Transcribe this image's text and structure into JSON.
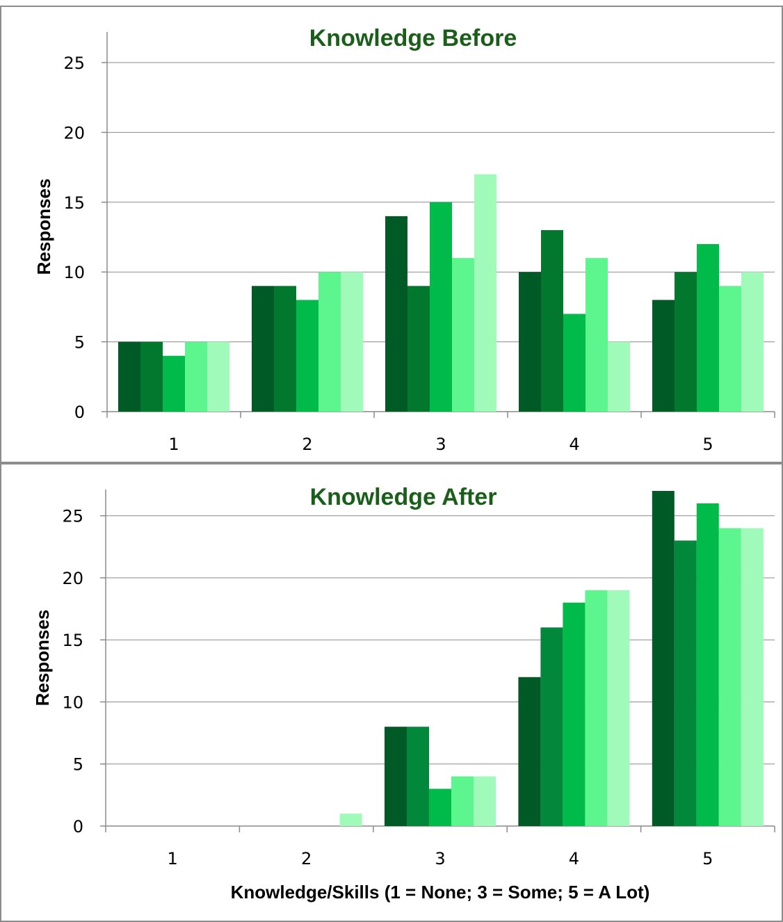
{
  "chart_data": [
    {
      "type": "bar",
      "title": "Knowledge Before",
      "ylabel": "Responses",
      "xlabel": "",
      "categories": [
        "1",
        "2",
        "3",
        "4",
        "5"
      ],
      "ylim": [
        0,
        25
      ],
      "yticks": [
        "0",
        "5",
        "10",
        "15",
        "20",
        "25"
      ],
      "grid": true,
      "series": [
        {
          "color": "#005a25",
          "values": [
            5,
            9,
            14,
            10,
            8
          ]
        },
        {
          "color": "#02782f",
          "values": [
            5,
            9,
            9,
            13,
            10
          ]
        },
        {
          "color": "#00bb4a",
          "values": [
            4,
            8,
            15,
            7,
            12
          ]
        },
        {
          "color": "#5cf58e",
          "values": [
            5,
            10,
            11,
            11,
            9
          ]
        },
        {
          "color": "#a0fbbb",
          "values": [
            5,
            10,
            17,
            5,
            10
          ]
        }
      ]
    },
    {
      "type": "bar",
      "title": "Knowledge After",
      "ylabel": "Responses",
      "xlabel": "Knowledge/Skills (1 = None; 3 = Some; 5 = A Lot)",
      "categories": [
        "1",
        "2",
        "3",
        "4",
        "5"
      ],
      "ylim": [
        0,
        27
      ],
      "yticks": [
        "0",
        "5",
        "10",
        "15",
        "20",
        "25"
      ],
      "grid": true,
      "series": [
        {
          "color": "#005a25",
          "values": [
            0,
            0,
            8,
            12,
            27
          ]
        },
        {
          "color": "#02883a",
          "values": [
            0,
            0,
            8,
            16,
            23
          ]
        },
        {
          "color": "#00bb4a",
          "values": [
            0,
            0,
            3,
            18,
            26
          ]
        },
        {
          "color": "#5cf58e",
          "values": [
            0,
            0,
            4,
            19,
            24
          ]
        },
        {
          "color": "#a0fbbb",
          "values": [
            0,
            1,
            4,
            19,
            24
          ]
        }
      ]
    }
  ]
}
